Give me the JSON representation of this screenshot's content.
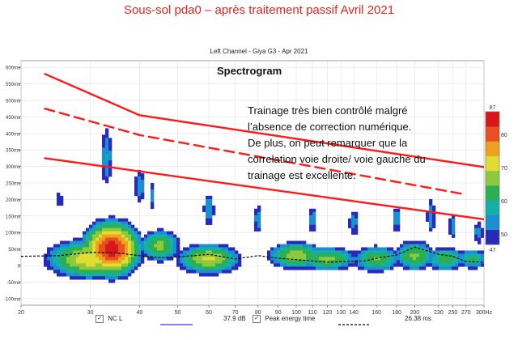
{
  "slide_title": "Sous-sol pda0 – après traitement passif Avril 2021",
  "chart_header": "Left Channel - Giya G3 - Apr 2021",
  "panel_label": "Spectrogram",
  "annotation_lines": [
    "Trainage très bien contrôlé malgré",
    "l’absence de correction numérique.",
    "De plus, on peut remarquer que la",
    "correlation voie droite/ voie gauche du",
    "trainage est excellente."
  ],
  "legend": {
    "series1_label": "NC L",
    "series1_value": "37.9 dB",
    "series2_label": "Peak energy time",
    "series2_value": "26.38 ms",
    "series1_color": "#3a3ad0",
    "series2_color": "#000000"
  },
  "chart_data": {
    "type": "heatmap",
    "x_scale": "log",
    "x_unit": "Hz",
    "xlim": [
      20,
      300
    ],
    "x_ticks": [
      {
        "value": 20,
        "label": "20"
      },
      {
        "value": 30,
        "label": "30"
      },
      {
        "value": 40,
        "label": "40"
      },
      {
        "value": 50,
        "label": "50"
      },
      {
        "value": 60,
        "label": "60"
      },
      {
        "value": 70,
        "label": "70"
      },
      {
        "value": 80,
        "label": "80"
      },
      {
        "value": 90,
        "label": "90"
      },
      {
        "value": 100,
        "label": "100"
      },
      {
        "value": 110,
        "label": "110"
      },
      {
        "value": 120,
        "label": "120"
      },
      {
        "value": 130,
        "label": "130"
      },
      {
        "value": 140,
        "label": "140"
      },
      {
        "value": 160,
        "label": "160"
      },
      {
        "value": 180,
        "label": "180"
      },
      {
        "value": 200,
        "label": "200"
      },
      {
        "value": 230,
        "label": "230"
      },
      {
        "value": 250,
        "label": "250"
      },
      {
        "value": 270,
        "label": "270"
      },
      {
        "value": 300,
        "label": "300Hz"
      }
    ],
    "y_unit": "ms",
    "ylim": [
      -120,
      620
    ],
    "y_ticks": [
      {
        "value": 600,
        "label": "600ms"
      },
      {
        "value": 550,
        "label": "550ms"
      },
      {
        "value": 500,
        "label": "500ms"
      },
      {
        "value": 450,
        "label": "450ms"
      },
      {
        "value": 400,
        "label": "400ms"
      },
      {
        "value": 350,
        "label": "350ms"
      },
      {
        "value": 300,
        "label": "300ms"
      },
      {
        "value": 250,
        "label": "250ms"
      },
      {
        "value": 200,
        "label": "200ms"
      },
      {
        "value": 150,
        "label": "150ms"
      },
      {
        "value": 100,
        "label": "100ms"
      },
      {
        "value": 50,
        "label": "50ms"
      },
      {
        "value": 0,
        "label": "0"
      },
      {
        "value": -50,
        "label": "-50ms"
      },
      {
        "value": -100,
        "label": "-100ms"
      }
    ],
    "colorbar": {
      "min": 47,
      "max": 87,
      "ticks": [
        80,
        70,
        60,
        50
      ],
      "min_label": "47",
      "max_label": "87",
      "colors": [
        "#2a2ab8",
        "#1c8fd0",
        "#14b0a8",
        "#2ab050",
        "#8ec83c",
        "#e0dc30",
        "#f0a020",
        "#e85020",
        "#d81818"
      ]
    },
    "peak_energy_time": [
      [
        20,
        28
      ],
      [
        25,
        30
      ],
      [
        30,
        40
      ],
      [
        35,
        38
      ],
      [
        40,
        30
      ],
      [
        45,
        24
      ],
      [
        50,
        26
      ],
      [
        60,
        34
      ],
      [
        70,
        20
      ],
      [
        80,
        30
      ],
      [
        90,
        22
      ],
      [
        100,
        18
      ],
      [
        120,
        10
      ],
      [
        150,
        14
      ],
      [
        160,
        22
      ],
      [
        180,
        32
      ],
      [
        200,
        56
      ],
      [
        230,
        34
      ],
      [
        250,
        28
      ],
      [
        270,
        12
      ],
      [
        300,
        10
      ]
    ],
    "blobs": [
      {
        "f": 34,
        "t": 50,
        "wf": 0.18,
        "wt": 90,
        "peak": 85
      },
      {
        "f": 30,
        "t": 20,
        "wf": 0.3,
        "wt": 70,
        "peak": 72
      },
      {
        "f": 60,
        "t": 20,
        "wf": 0.22,
        "wt": 55,
        "peak": 70
      },
      {
        "f": 45,
        "t": 60,
        "wf": 0.15,
        "wt": 60,
        "peak": 66
      },
      {
        "f": 100,
        "t": 30,
        "wf": 0.2,
        "wt": 50,
        "peak": 68
      },
      {
        "f": 120,
        "t": 20,
        "wf": 0.22,
        "wt": 45,
        "peak": 66
      },
      {
        "f": 160,
        "t": 20,
        "wf": 0.18,
        "wt": 50,
        "peak": 65
      },
      {
        "f": 200,
        "t": 30,
        "wf": 0.15,
        "wt": 55,
        "peak": 66
      },
      {
        "f": 240,
        "t": 20,
        "wf": 0.15,
        "wt": 45,
        "peak": 64
      },
      {
        "f": 280,
        "t": 20,
        "wf": 0.12,
        "wt": 40,
        "peak": 62
      },
      {
        "f": 33,
        "t": 330,
        "wf": 0.05,
        "wt": 140,
        "peak": 56
      },
      {
        "f": 40,
        "t": 240,
        "wf": 0.05,
        "wt": 80,
        "peak": 56
      },
      {
        "f": 43,
        "t": 210,
        "wf": 0.03,
        "wt": 70,
        "peak": 54
      },
      {
        "f": 25,
        "t": 200,
        "wf": 0.04,
        "wt": 50,
        "peak": 52
      },
      {
        "f": 60,
        "t": 170,
        "wf": 0.05,
        "wt": 80,
        "peak": 56
      },
      {
        "f": 80,
        "t": 140,
        "wf": 0.04,
        "wt": 70,
        "peak": 55
      },
      {
        "f": 110,
        "t": 140,
        "wf": 0.05,
        "wt": 70,
        "peak": 54
      },
      {
        "f": 140,
        "t": 130,
        "wf": 0.05,
        "wt": 70,
        "peak": 54
      },
      {
        "f": 180,
        "t": 140,
        "wf": 0.04,
        "wt": 70,
        "peak": 55
      },
      {
        "f": 220,
        "t": 150,
        "wf": 0.04,
        "wt": 90,
        "peak": 55
      },
      {
        "f": 250,
        "t": 120,
        "wf": 0.04,
        "wt": 70,
        "peak": 54
      },
      {
        "f": 290,
        "t": 100,
        "wf": 0.05,
        "wt": 60,
        "peak": 54
      }
    ],
    "overlay_lines": [
      {
        "style": "solid",
        "color": "#ff1a1a",
        "points": [
          [
            23,
            580
          ],
          [
            40,
            455
          ],
          [
            300,
            298
          ]
        ]
      },
      {
        "style": "dashed",
        "color": "#ff1a1a",
        "points": [
          [
            23,
            475
          ],
          [
            40,
            395
          ],
          [
            270,
            215
          ]
        ]
      },
      {
        "style": "solid",
        "color": "#ff1a1a",
        "points": [
          [
            23,
            325
          ],
          [
            300,
            140
          ]
        ]
      }
    ]
  }
}
